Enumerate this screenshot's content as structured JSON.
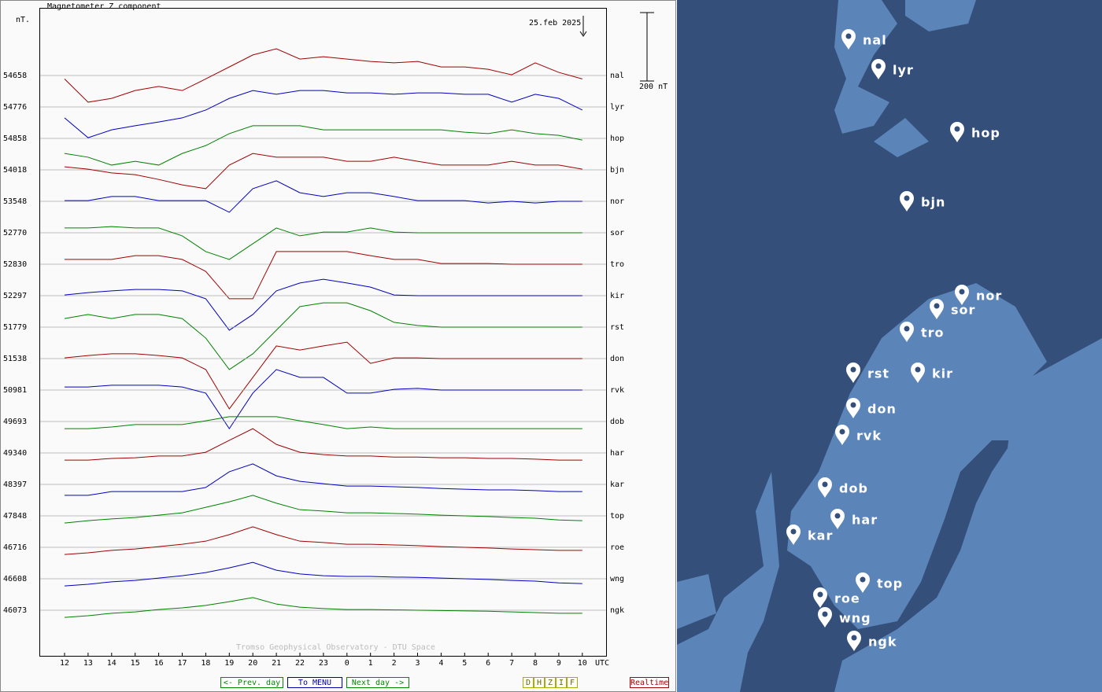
{
  "title": "Magnetometer Z component",
  "unit": "nT.",
  "date": "25.feb 2025",
  "scale": {
    "value": 200,
    "label": "200 nT"
  },
  "x_label": "UTC",
  "hours": [
    12,
    13,
    14,
    15,
    16,
    17,
    18,
    19,
    20,
    21,
    22,
    23,
    0,
    1,
    2,
    3,
    4,
    5,
    6,
    7,
    8,
    9,
    10
  ],
  "stations": [
    {
      "name": "nal",
      "baseline": 54658,
      "color": "#a00000",
      "values": [
        -10,
        -78,
        -67,
        -44,
        -32,
        -44,
        -10,
        25,
        60,
        78,
        48,
        55,
        48,
        41,
        37,
        41,
        25,
        25,
        18,
        2,
        37,
        9,
        -10
      ]
    },
    {
      "name": "lyr",
      "baseline": 54776,
      "color": "#0000c0",
      "values": [
        -32,
        -90,
        -67,
        -55,
        -44,
        -32,
        -9,
        25,
        48,
        37,
        48,
        48,
        41,
        41,
        37,
        41,
        41,
        37,
        37,
        14,
        37,
        25,
        -9
      ]
    },
    {
      "name": "hop",
      "baseline": 54858,
      "color": "#008000",
      "values": [
        -44,
        -55,
        -78,
        -67,
        -78,
        -44,
        -21,
        14,
        37,
        37,
        37,
        25,
        25,
        25,
        25,
        25,
        25,
        18,
        14,
        25,
        14,
        9,
        -5
      ]
    },
    {
      "name": "bjn",
      "baseline": 54018,
      "color": "#a00000",
      "values": [
        9,
        2,
        -9,
        -14,
        -28,
        -44,
        -55,
        14,
        48,
        37,
        37,
        37,
        25,
        25,
        37,
        25,
        14,
        14,
        14,
        25,
        14,
        14,
        2
      ]
    },
    {
      "name": "nor",
      "baseline": 53548,
      "color": "#0000c0",
      "values": [
        2,
        2,
        14,
        14,
        2,
        2,
        2,
        -32,
        37,
        60,
        25,
        14,
        25,
        25,
        14,
        2,
        2,
        2,
        -5,
        0,
        -5,
        0,
        0
      ]
    },
    {
      "name": "sor",
      "baseline": 52770,
      "color": "#008000",
      "values": [
        14,
        14,
        18,
        14,
        14,
        -9,
        -55,
        -78,
        -32,
        14,
        -9,
        2,
        2,
        14,
        2,
        0,
        0,
        0,
        0,
        0,
        0,
        0,
        0
      ]
    },
    {
      "name": "tro",
      "baseline": 52830,
      "color": "#a00000",
      "values": [
        14,
        14,
        14,
        25,
        25,
        14,
        -21,
        -101,
        -101,
        37,
        37,
        37,
        37,
        25,
        14,
        14,
        2,
        2,
        2,
        0,
        0,
        0,
        0
      ]
    },
    {
      "name": "kir",
      "baseline": 52297,
      "color": "#0000c0",
      "values": [
        2,
        9,
        14,
        18,
        18,
        14,
        -9,
        -101,
        -55,
        14,
        37,
        48,
        37,
        25,
        2,
        0,
        0,
        0,
        0,
        0,
        0,
        0,
        0
      ]
    },
    {
      "name": "rst",
      "baseline": 51779,
      "color": "#008000",
      "values": [
        25,
        37,
        25,
        37,
        37,
        25,
        -32,
        -124,
        -78,
        -9,
        60,
        71,
        71,
        48,
        14,
        5,
        0,
        0,
        0,
        0,
        0,
        0,
        0
      ]
    },
    {
      "name": "don",
      "baseline": 51538,
      "color": "#a00000",
      "values": [
        2,
        9,
        14,
        14,
        9,
        2,
        -32,
        -147,
        -55,
        37,
        25,
        37,
        48,
        -14,
        2,
        2,
        0,
        0,
        0,
        0,
        0,
        0,
        0
      ]
    },
    {
      "name": "rvk",
      "baseline": 50981,
      "color": "#0000c0",
      "values": [
        9,
        9,
        14,
        14,
        14,
        9,
        -9,
        -113,
        -9,
        60,
        37,
        37,
        -9,
        -9,
        2,
        5,
        0,
        0,
        0,
        0,
        0,
        0,
        0
      ]
    },
    {
      "name": "dob",
      "baseline": 49693,
      "color": "#008000",
      "values": [
        -21,
        -21,
        -16,
        -9,
        -9,
        -9,
        2,
        14,
        14,
        14,
        2,
        -9,
        -21,
        -16,
        -21,
        -21,
        -21,
        -21,
        -21,
        -21,
        -21,
        -21,
        -21
      ]
    },
    {
      "name": "har",
      "baseline": 49340,
      "color": "#a00000",
      "values": [
        -21,
        -21,
        -16,
        -14,
        -9,
        -9,
        2,
        37,
        71,
        25,
        2,
        -5,
        -9,
        -9,
        -12,
        -12,
        -14,
        -14,
        -16,
        -16,
        -18,
        -21,
        -21
      ]
    },
    {
      "name": "kar",
      "baseline": 48397,
      "color": "#0000c0",
      "values": [
        -32,
        -32,
        -21,
        -21,
        -21,
        -21,
        -9,
        37,
        60,
        25,
        9,
        2,
        -5,
        -5,
        -7,
        -9,
        -12,
        -14,
        -16,
        -16,
        -18,
        -21,
        -21
      ]
    },
    {
      "name": "top",
      "baseline": 47848,
      "color": "#008000",
      "values": [
        -21,
        -14,
        -9,
        -5,
        2,
        9,
        25,
        41,
        60,
        37,
        18,
        14,
        9,
        9,
        7,
        5,
        2,
        0,
        -2,
        -5,
        -7,
        -12,
        -14
      ]
    },
    {
      "name": "roe",
      "baseline": 46716,
      "color": "#a00000",
      "values": [
        -21,
        -16,
        -9,
        -5,
        2,
        9,
        18,
        37,
        60,
        37,
        18,
        14,
        9,
        9,
        7,
        5,
        2,
        0,
        -2,
        -5,
        -7,
        -9,
        -9
      ]
    },
    {
      "name": "wng",
      "baseline": 46608,
      "color": "#0000c0",
      "values": [
        -21,
        -16,
        -9,
        -5,
        2,
        9,
        18,
        32,
        48,
        25,
        14,
        9,
        7,
        7,
        5,
        4,
        2,
        0,
        -2,
        -5,
        -7,
        -12,
        -14
      ]
    },
    {
      "name": "ngk",
      "baseline": 46073,
      "color": "#008000",
      "values": [
        -21,
        -16,
        -9,
        -5,
        2,
        7,
        14,
        25,
        37,
        18,
        9,
        5,
        2,
        2,
        1,
        0,
        -1,
        -2,
        -3,
        -5,
        -7,
        -9,
        -9
      ]
    }
  ],
  "footer": "Tromso Geophysical Observatory - DTU Space",
  "buttons": {
    "prev": "<- Prev. day",
    "menu": "To MENU",
    "next": "Next day ->",
    "components": [
      "D",
      "H",
      "Z",
      "I",
      "F"
    ],
    "realtime": "Realtime"
  }
}
